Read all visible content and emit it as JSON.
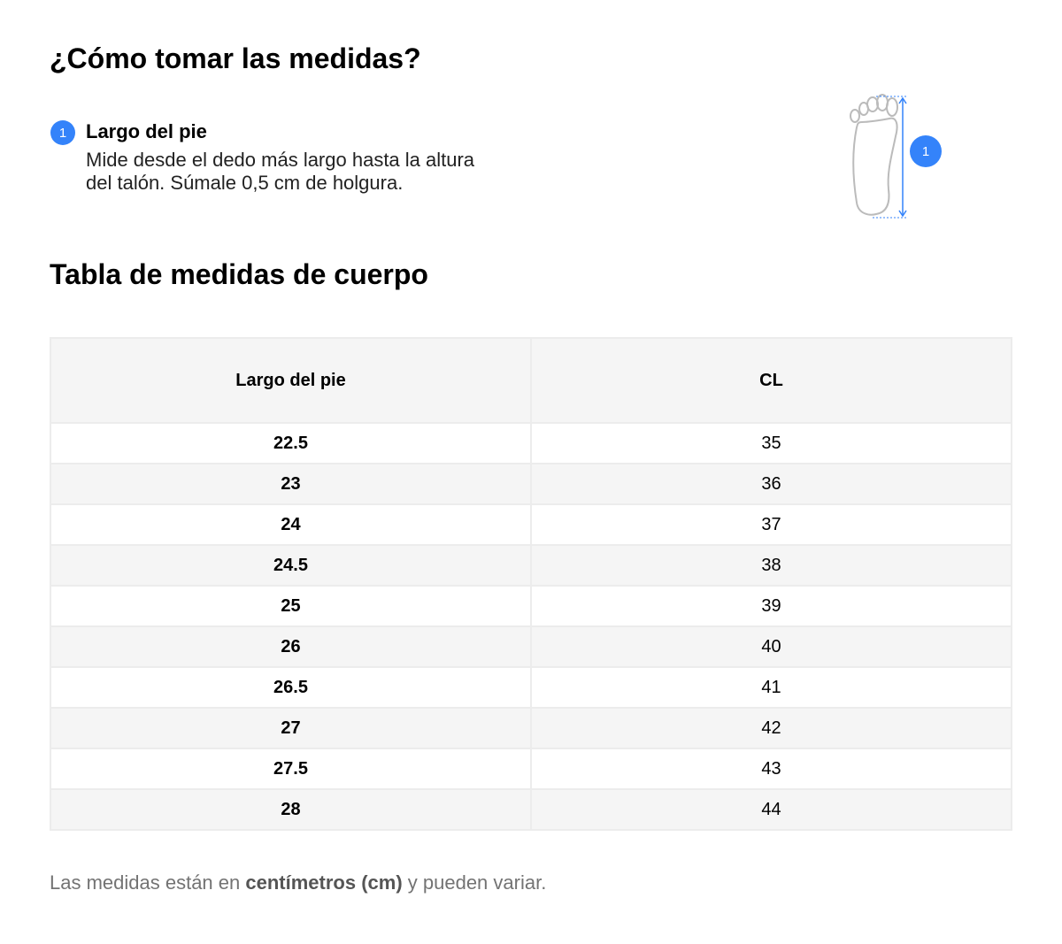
{
  "header": {
    "title": "¿Cómo tomar las medidas?"
  },
  "step": {
    "number": "1",
    "title": "Largo del pie",
    "text": "Mide desde el dedo más largo hasta la altura del talón. Súmale 0,5 cm de holgura."
  },
  "table": {
    "title": "Tabla de medidas de cuerpo",
    "columns": [
      "Largo del pie",
      "CL"
    ],
    "rows": [
      [
        22.5,
        35
      ],
      [
        23,
        36
      ],
      [
        24,
        37
      ],
      [
        24.5,
        38
      ],
      [
        25,
        39
      ],
      [
        26,
        40
      ],
      [
        26.5,
        41
      ],
      [
        27,
        42
      ],
      [
        27.5,
        43
      ],
      [
        28,
        44
      ]
    ]
  },
  "footer": {
    "before": "Las medidas están en ",
    "bold": "centímetros (cm)",
    "after": " y pueden variar."
  }
}
